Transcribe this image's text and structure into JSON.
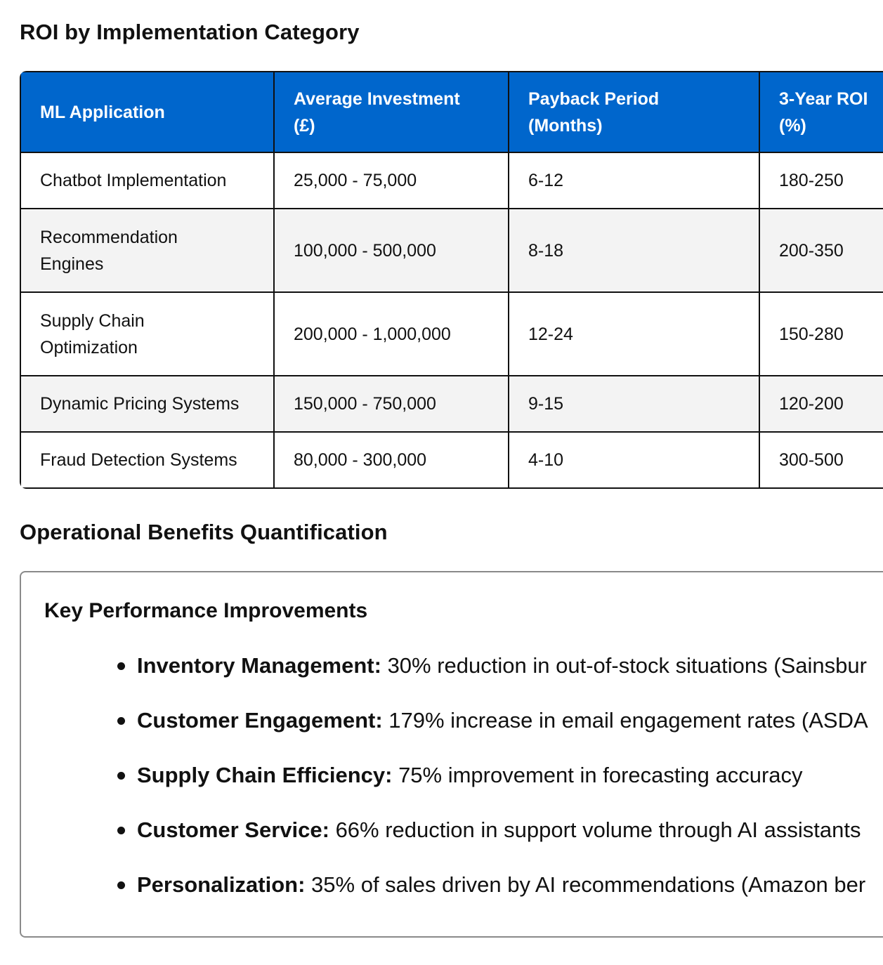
{
  "roi_section": {
    "title": "ROI by Implementation Category",
    "table": {
      "headers": [
        {
          "line1": "ML Application",
          "line2": ""
        },
        {
          "line1": "Average Investment",
          "line2": "(£)"
        },
        {
          "line1": "Payback Period",
          "line2": "(Months)"
        },
        {
          "line1": "3-Year ROI",
          "line2": "(%)"
        }
      ],
      "rows": [
        {
          "application": [
            "Chatbot Implementation"
          ],
          "investment": "25,000 - 75,000",
          "payback": "6-12",
          "roi": "180-250"
        },
        {
          "application": [
            "Recommendation",
            "Engines"
          ],
          "investment": "100,000 - 500,000",
          "payback": "8-18",
          "roi": "200-350"
        },
        {
          "application": [
            "Supply Chain",
            "Optimization"
          ],
          "investment": "200,000 - 1,000,000",
          "payback": "12-24",
          "roi": "150-280"
        },
        {
          "application": [
            "Dynamic Pricing Systems"
          ],
          "investment": "150,000 - 750,000",
          "payback": "9-15",
          "roi": "120-200"
        },
        {
          "application": [
            "Fraud Detection Systems"
          ],
          "investment": "80,000 - 300,000",
          "payback": "4-10",
          "roi": "300-500"
        }
      ]
    }
  },
  "ops_section": {
    "title": "Operational Benefits Quantification",
    "box_title": "Key Performance Improvements",
    "items": [
      {
        "label": "Inventory Management:",
        "text": " 30% reduction in out-of-stock situations (Sainsbur"
      },
      {
        "label": "Customer Engagement:",
        "text": " 179% increase in email engagement rates (ASDA"
      },
      {
        "label": "Supply Chain Efficiency:",
        "text": " 75% improvement in forecasting accuracy"
      },
      {
        "label": "Customer Service:",
        "text": " 66% reduction in support volume through AI assistants"
      },
      {
        "label": "Personalization:",
        "text": " 35% of sales driven by AI recommendations (Amazon ber"
      }
    ]
  },
  "colors": {
    "header_bg": "#0066cc",
    "header_text": "#ffffff",
    "zebra_row": "#f3f3f3",
    "border": "#111111",
    "box_border": "#8a8a8a"
  }
}
